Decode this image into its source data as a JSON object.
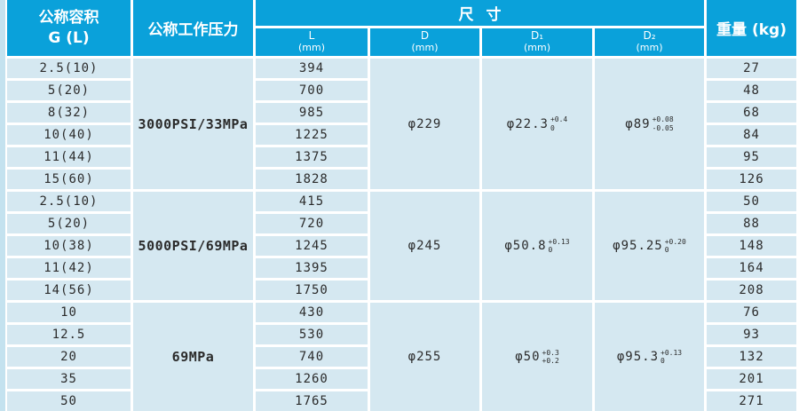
{
  "header": {
    "capacity_line1": "公称容积",
    "capacity_line2": "G (L)",
    "pressure": "公称工作压力",
    "size": "尺寸",
    "subcols": [
      {
        "name": "L",
        "unit": "(mm)"
      },
      {
        "name": "D",
        "unit": "(mm)"
      },
      {
        "name": "D₁",
        "unit": "(mm)"
      },
      {
        "name": "D₂",
        "unit": "(mm)"
      }
    ],
    "weight": "重量 (kg)"
  },
  "groups": [
    {
      "pressure": "3000PSI/33MPa",
      "d": "φ229",
      "d1": {
        "base": "φ22.3",
        "sup": "+0.4",
        "sub": "0"
      },
      "d2": {
        "base": "φ89",
        "sup": "+0.08",
        "sub": "-0.05"
      },
      "rows": [
        {
          "capacity": "2.5(10)",
          "l": "394",
          "weight": "27"
        },
        {
          "capacity": "5(20)",
          "l": "700",
          "weight": "48"
        },
        {
          "capacity": "8(32)",
          "l": "985",
          "weight": "68"
        },
        {
          "capacity": "10(40)",
          "l": "1225",
          "weight": "84"
        },
        {
          "capacity": "11(44)",
          "l": "1375",
          "weight": "95"
        },
        {
          "capacity": "15(60)",
          "l": "1828",
          "weight": "126"
        }
      ]
    },
    {
      "pressure": "5000PSI/69MPa",
      "d": "φ245",
      "d1": {
        "base": "φ50.8",
        "sup": "+0.13",
        "sub": "0"
      },
      "d2": {
        "base": "φ95.25",
        "sup": "+0.20",
        "sub": "0"
      },
      "rows": [
        {
          "capacity": "2.5(10)",
          "l": "415",
          "weight": "50"
        },
        {
          "capacity": "5(20)",
          "l": "720",
          "weight": "88"
        },
        {
          "capacity": "10(38)",
          "l": "1245",
          "weight": "148"
        },
        {
          "capacity": "11(42)",
          "l": "1395",
          "weight": "164"
        },
        {
          "capacity": "14(56)",
          "l": "1750",
          "weight": "208"
        }
      ]
    },
    {
      "pressure": "69MPa",
      "d": "φ255",
      "d1": {
        "base": "φ50",
        "sup": "+0.3",
        "sub": "+0.2"
      },
      "d2": {
        "base": "φ95.3",
        "sup": "+0.13",
        "sub": "0"
      },
      "rows": [
        {
          "capacity": "10",
          "l": "430",
          "weight": "76"
        },
        {
          "capacity": "12.5",
          "l": "530",
          "weight": "93"
        },
        {
          "capacity": "20",
          "l": "740",
          "weight": "132"
        },
        {
          "capacity": "35",
          "l": "1260",
          "weight": "201"
        },
        {
          "capacity": "50",
          "l": "1765",
          "weight": "271"
        }
      ]
    }
  ],
  "colors": {
    "header_bg": "#0aa1da",
    "cell_bg": "#d5e8f1",
    "edge_strip": "#c4e2ef",
    "text": "#2b2b2b"
  }
}
